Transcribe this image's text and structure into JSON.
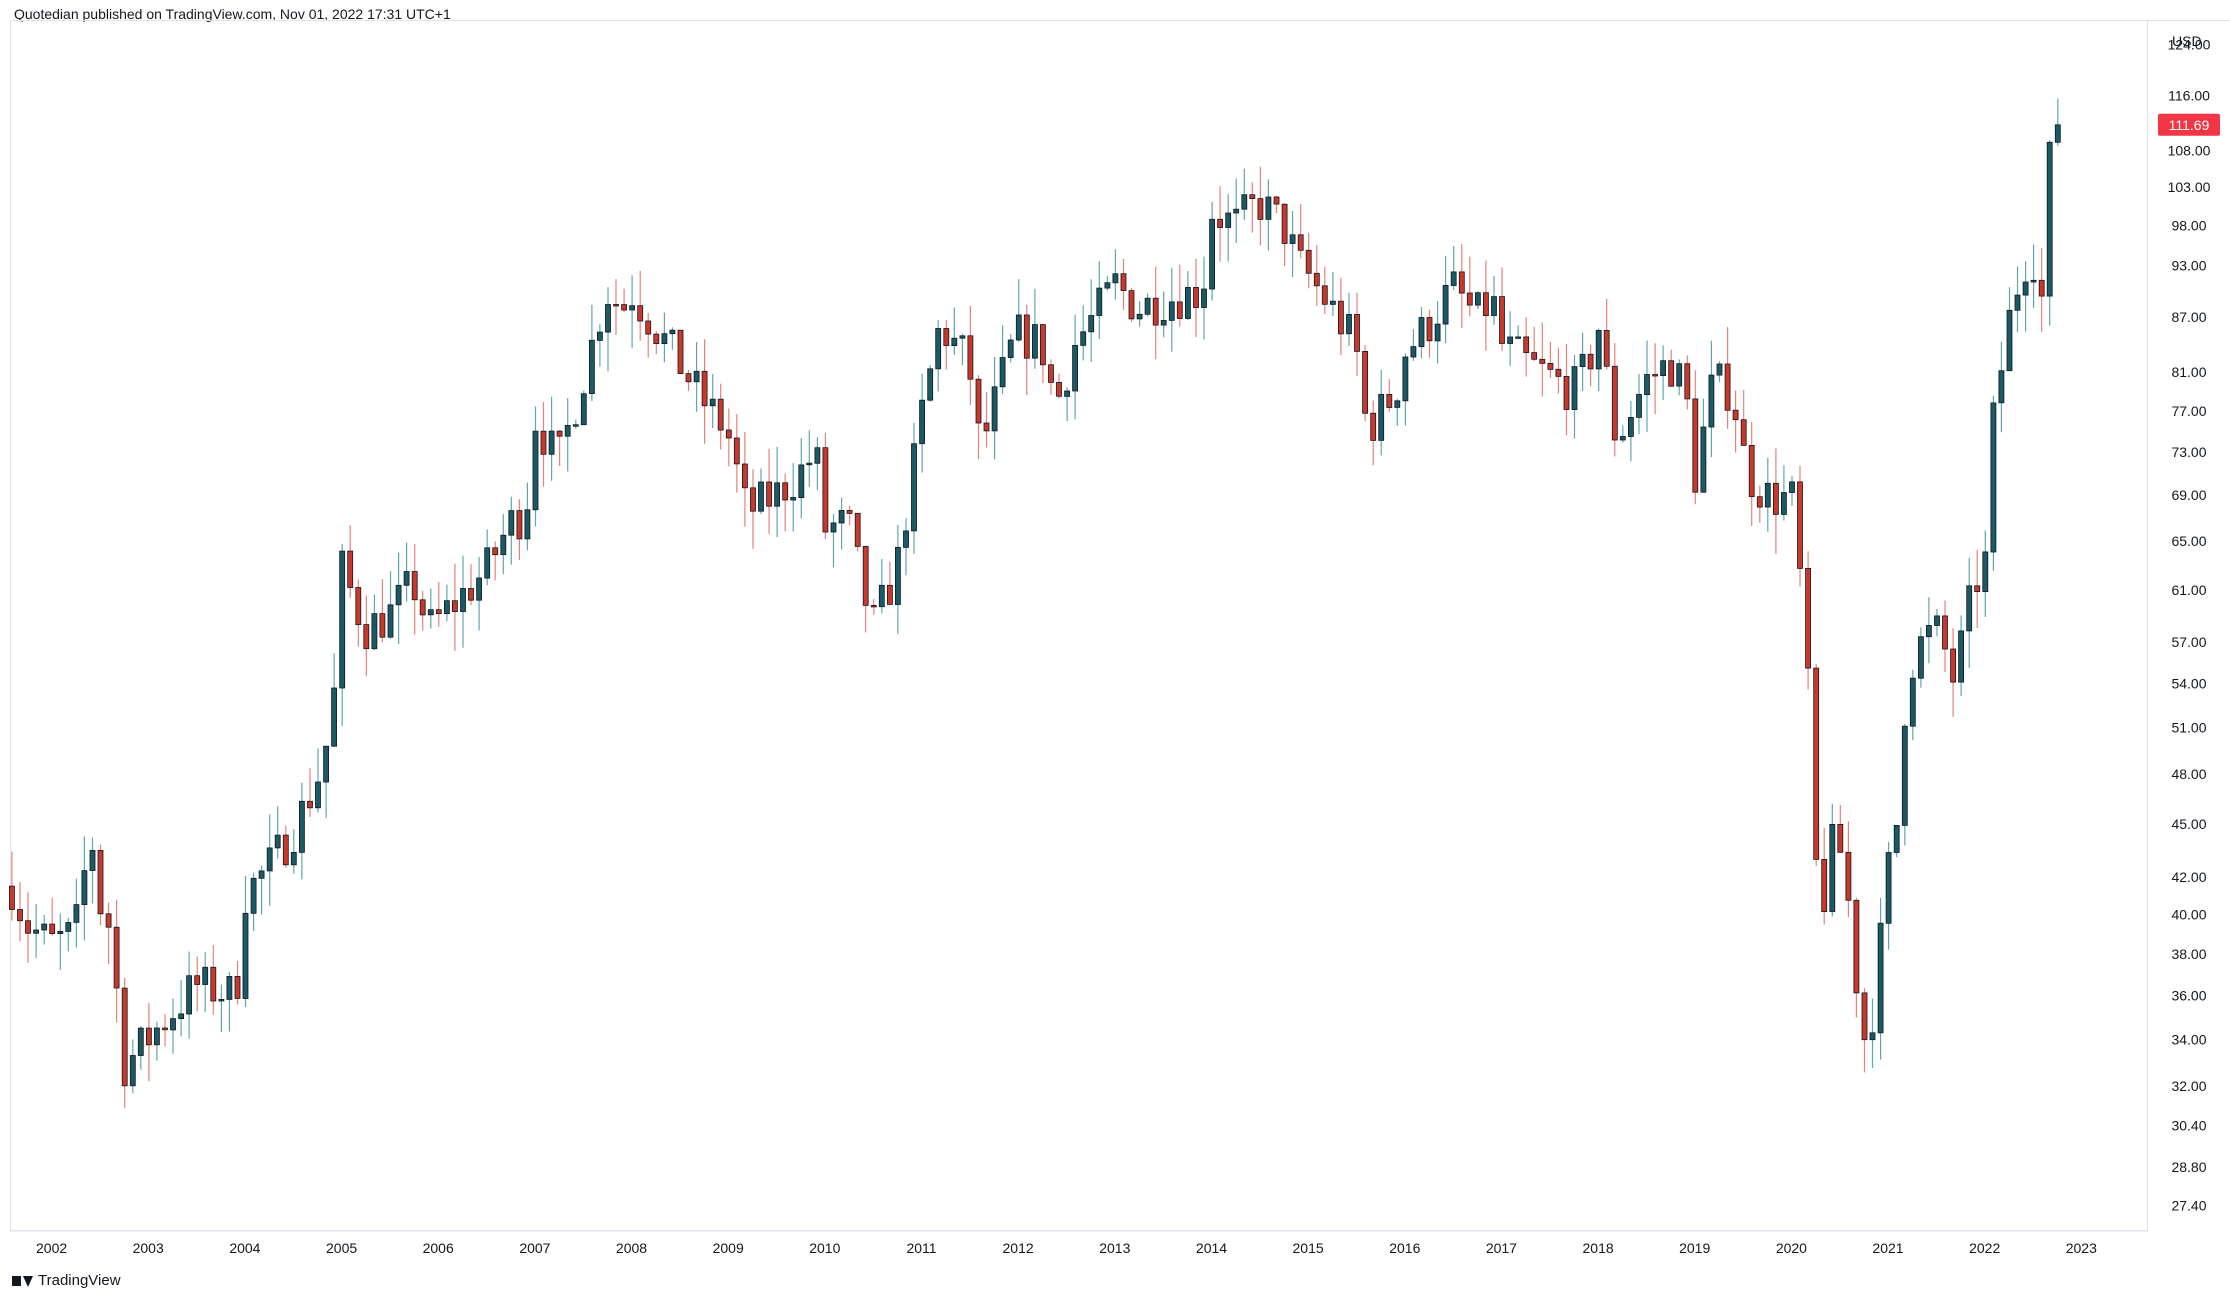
{
  "header": {
    "text": "Quotedian published on TradingView.com, Nov 01, 2022 17:31 UTC+1"
  },
  "footer": {
    "brand": "TradingView"
  },
  "colors": {
    "up": "#1a5a64",
    "down": "#c8382b",
    "badge": "#f23645",
    "grid": "#e0e3eb",
    "text": "#131722"
  },
  "chart_data": {
    "type": "candlestick",
    "currency_label": "USD",
    "last_price_label": "111.69",
    "y_scale": "log",
    "ylim": [
      26.5,
      128
    ],
    "x_range": [
      2001.58,
      2023.7
    ],
    "y_ticks": [
      "27.40",
      "28.80",
      "30.40",
      "32.00",
      "34.00",
      "36.00",
      "38.00",
      "40.00",
      "42.00",
      "45.00",
      "48.00",
      "51.00",
      "54.00",
      "57.00",
      "61.00",
      "65.00",
      "69.00",
      "73.00",
      "77.00",
      "81.00",
      "87.00",
      "93.00",
      "98.00",
      "103.00",
      "108.00",
      "116.00",
      "124.00"
    ],
    "x_ticks": [
      "2002",
      "2003",
      "2004",
      "2005",
      "2006",
      "2007",
      "2008",
      "2009",
      "2010",
      "2011",
      "2012",
      "2013",
      "2014",
      "2015",
      "2016",
      "2017",
      "2018",
      "2019",
      "2020",
      "2021",
      "2022",
      "2023"
    ],
    "anchors": [
      [
        2001.6,
        41.5
      ],
      [
        2001.75,
        39.5
      ],
      [
        2002.0,
        38.5
      ],
      [
        2002.25,
        39.0
      ],
      [
        2002.42,
        44.5
      ],
      [
        2002.5,
        40.5
      ],
      [
        2002.58,
        40.2
      ],
      [
        2002.66,
        37.5
      ],
      [
        2002.75,
        32.8
      ],
      [
        2003.0,
        34.0
      ],
      [
        2003.25,
        35.2
      ],
      [
        2003.5,
        36.5
      ],
      [
        2003.75,
        36.2
      ],
      [
        2003.92,
        36.0
      ],
      [
        2004.0,
        41.0
      ],
      [
        2004.25,
        42.5
      ],
      [
        2004.5,
        44.5
      ],
      [
        2004.75,
        47.5
      ],
      [
        2004.92,
        51.5
      ],
      [
        2005.0,
        63.0
      ],
      [
        2005.25,
        58.0
      ],
      [
        2005.5,
        59.0
      ],
      [
        2005.75,
        61.5
      ],
      [
        2005.92,
        58.0
      ],
      [
        2006.25,
        60.5
      ],
      [
        2006.5,
        62.5
      ],
      [
        2006.75,
        66.5
      ],
      [
        2006.92,
        67.5
      ],
      [
        2007.0,
        76.5
      ],
      [
        2007.25,
        72.0
      ],
      [
        2007.5,
        80.0
      ],
      [
        2007.75,
        90.0
      ],
      [
        2007.92,
        88.0
      ],
      [
        2008.0,
        90.0
      ],
      [
        2008.25,
        86.0
      ],
      [
        2008.5,
        82.0
      ],
      [
        2008.75,
        78.0
      ],
      [
        2009.0,
        75.0
      ],
      [
        2009.2,
        67.5
      ],
      [
        2009.5,
        69.0
      ],
      [
        2009.75,
        71.0
      ],
      [
        2009.92,
        73.0
      ],
      [
        2010.0,
        66.0
      ],
      [
        2010.25,
        66.5
      ],
      [
        2010.5,
        58.0
      ],
      [
        2010.75,
        62.5
      ],
      [
        2010.92,
        71.0
      ],
      [
        2011.0,
        76.0
      ],
      [
        2011.2,
        86.0
      ],
      [
        2011.5,
        82.0
      ],
      [
        2011.62,
        73.0
      ],
      [
        2011.92,
        83.0
      ],
      [
        2012.0,
        85.0
      ],
      [
        2012.25,
        84.0
      ],
      [
        2012.4,
        77.5
      ],
      [
        2012.6,
        84.0
      ],
      [
        2012.92,
        89.0
      ],
      [
        2013.0,
        91.0
      ],
      [
        2013.25,
        88.0
      ],
      [
        2013.5,
        89.0
      ],
      [
        2013.92,
        90.0
      ],
      [
        2014.0,
        100.0
      ],
      [
        2014.25,
        98.0
      ],
      [
        2014.5,
        101.0
      ],
      [
        2014.75,
        98.0
      ],
      [
        2014.92,
        93.0
      ],
      [
        2015.0,
        92.0
      ],
      [
        2015.25,
        88.0
      ],
      [
        2015.5,
        84.0
      ],
      [
        2015.62,
        75.0
      ],
      [
        2015.92,
        79.0
      ],
      [
        2016.0,
        83.0
      ],
      [
        2016.25,
        86.0
      ],
      [
        2016.5,
        90.5
      ],
      [
        2016.75,
        87.0
      ],
      [
        2016.92,
        89.0
      ],
      [
        2017.0,
        84.0
      ],
      [
        2017.25,
        82.0
      ],
      [
        2017.5,
        80.5
      ],
      [
        2017.75,
        79.0
      ],
      [
        2017.92,
        82.0
      ],
      [
        2018.0,
        87.0
      ],
      [
        2018.2,
        74.0
      ],
      [
        2018.5,
        80.0
      ],
      [
        2018.75,
        82.0
      ],
      [
        2018.92,
        79.0
      ],
      [
        2019.0,
        70.0
      ],
      [
        2019.2,
        80.0
      ],
      [
        2019.4,
        79.0
      ],
      [
        2019.55,
        71.0
      ],
      [
        2019.75,
        69.0
      ],
      [
        2019.92,
        68.5
      ],
      [
        2020.0,
        70.0
      ],
      [
        2020.1,
        62.0
      ],
      [
        2020.2,
        52.0
      ],
      [
        2020.3,
        38.5
      ],
      [
        2020.4,
        43.5
      ],
      [
        2020.5,
        44.0
      ],
      [
        2020.62,
        40.0
      ],
      [
        2020.72,
        35.0
      ],
      [
        2020.8,
        33.5
      ],
      [
        2020.92,
        38.0
      ],
      [
        2021.0,
        42.0
      ],
      [
        2021.1,
        45.0
      ],
      [
        2021.2,
        54.0
      ],
      [
        2021.3,
        56.5
      ],
      [
        2021.5,
        58.0
      ],
      [
        2021.62,
        56.0
      ],
      [
        2021.7,
        54.0
      ],
      [
        2021.8,
        58.0
      ],
      [
        2021.92,
        62.0
      ],
      [
        2022.0,
        61.0
      ],
      [
        2022.1,
        76.0
      ],
      [
        2022.25,
        86.0
      ],
      [
        2022.4,
        93.0
      ],
      [
        2022.5,
        95.0
      ],
      [
        2022.62,
        88.0
      ],
      [
        2022.7,
        112.0
      ],
      [
        2022.8,
        111.5
      ]
    ]
  }
}
